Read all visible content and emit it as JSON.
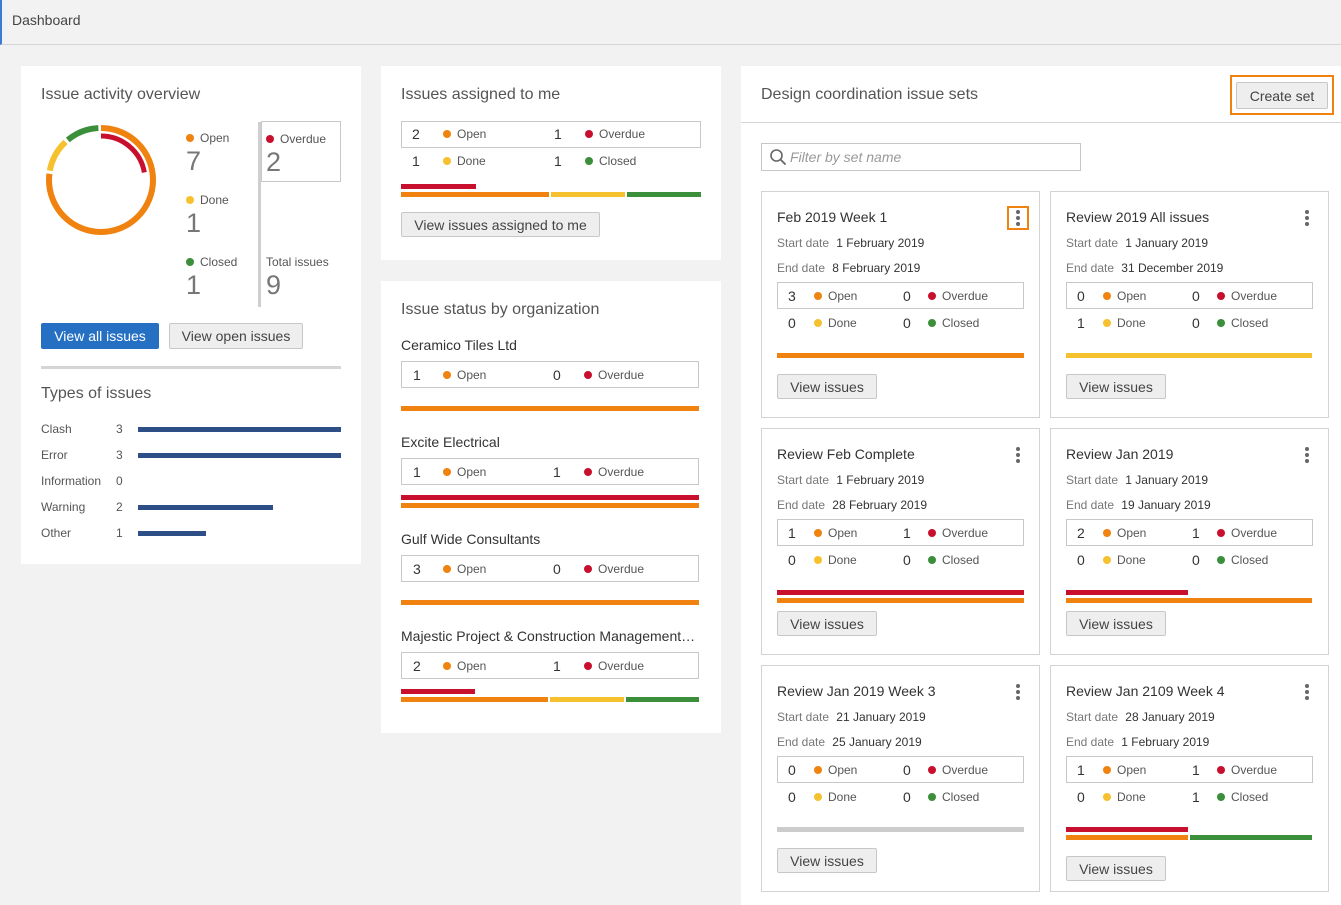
{
  "header": {
    "title": "Dashboard"
  },
  "overview": {
    "title": "Issue activity overview",
    "open": {
      "label": "Open",
      "value": "7"
    },
    "done": {
      "label": "Done",
      "value": "1"
    },
    "closed": {
      "label": "Closed",
      "value": "1"
    },
    "overdue": {
      "label": "Overdue",
      "value": "2"
    },
    "total": {
      "label": "Total issues",
      "value": "9"
    },
    "view_all_label": "View all issues",
    "view_open_label": "View open issues",
    "donut": {
      "open": 7,
      "done": 1,
      "closed": 1,
      "overdue": 2,
      "total": 9
    }
  },
  "types": {
    "title": "Types of issues",
    "max": 3,
    "items": [
      {
        "name": "Clash",
        "count": "3",
        "value": 3
      },
      {
        "name": "Error",
        "count": "3",
        "value": 3
      },
      {
        "name": "Information",
        "count": "0",
        "value": 0
      },
      {
        "name": "Warning",
        "count": "2",
        "value": 2
      },
      {
        "name": "Other",
        "count": "1",
        "value": 1
      }
    ]
  },
  "assigned": {
    "title": "Issues assigned to me",
    "open": {
      "label": "Open",
      "value": "2"
    },
    "overdue": {
      "label": "Overdue",
      "value": "1"
    },
    "done": {
      "label": "Done",
      "value": "1"
    },
    "closed": {
      "label": "Closed",
      "value": "1"
    },
    "button_label": "View issues assigned to me"
  },
  "org": {
    "title": "Issue status by organization",
    "items": [
      {
        "name": "Ceramico Tiles Ltd",
        "open_label": "Open",
        "open": "1",
        "overdue_label": "Overdue",
        "overdue": "0"
      },
      {
        "name": "Excite Electrical",
        "open_label": "Open",
        "open": "1",
        "overdue_label": "Overdue",
        "overdue": "1"
      },
      {
        "name": "Gulf Wide Consultants",
        "open_label": "Open",
        "open": "3",
        "overdue_label": "Overdue",
        "overdue": "0"
      },
      {
        "name": "Majestic Project & Construction Management…",
        "open_label": "Open",
        "open": "2",
        "overdue_label": "Overdue",
        "overdue": "1"
      }
    ]
  },
  "sets": {
    "title": "Design coordination issue sets",
    "create_label": "Create set",
    "filter_placeholder": "Filter by set name",
    "start_label": "Start date",
    "end_label": "End date",
    "open_label": "Open",
    "overdue_label": "Overdue",
    "done_label": "Done",
    "closed_label": "Closed",
    "view_label": "View issues",
    "cards": [
      {
        "title": "Feb 2019 Week 1",
        "start": "1 February 2019",
        "end": "8 February 2019",
        "open": "3",
        "overdue": "0",
        "done": "0",
        "closed": "0"
      },
      {
        "title": "Review 2019 All issues",
        "start": "1 January 2019",
        "end": "31 December 2019",
        "open": "0",
        "overdue": "0",
        "done": "1",
        "closed": "0"
      },
      {
        "title": "Review Feb Complete",
        "start": "1 February 2019",
        "end": "28 February 2019",
        "open": "1",
        "overdue": "1",
        "done": "0",
        "closed": "0"
      },
      {
        "title": "Review Jan 2019",
        "start": "1 January 2019",
        "end": "19 January 2019",
        "open": "2",
        "overdue": "1",
        "done": "0",
        "closed": "0"
      },
      {
        "title": "Review Jan 2019 Week 3",
        "start": "21 January 2019",
        "end": "25 January 2019",
        "open": "0",
        "overdue": "0",
        "done": "0",
        "closed": "0"
      },
      {
        "title": "Review Jan 2109 Week 4",
        "start": "28 January 2019",
        "end": "1 February 2019",
        "open": "1",
        "overdue": "1",
        "done": "0",
        "closed": "1"
      }
    ]
  },
  "colors": {
    "open": "#f0820f",
    "overdue": "#c8102e",
    "done": "#f5c12e",
    "closed": "#3b8f3b",
    "empty": "#cccccc",
    "type_bar": "#2d4e87",
    "primary": "#2670c4"
  },
  "icons": {
    "search": "search-icon",
    "more": "more-vertical-icon"
  }
}
